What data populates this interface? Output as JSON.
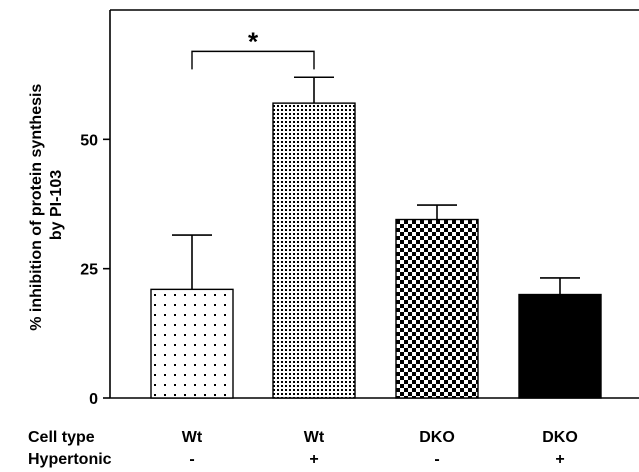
{
  "chart_data": {
    "type": "bar",
    "ylabel_lines": [
      "% inhibition of protein synthesis",
      "by PI-103"
    ],
    "ylim": [
      0,
      75
    ],
    "yticks": [
      0,
      25,
      50
    ],
    "grid": false,
    "row_labels": [
      "Cell type",
      "Hypertonic"
    ],
    "bars": [
      {
        "cell_type": "Wt",
        "hypertonic": "-",
        "value": 21,
        "error": 10.5,
        "pattern": "sparse-dots"
      },
      {
        "cell_type": "Wt",
        "hypertonic": "+",
        "value": 57,
        "error": 5,
        "pattern": "dense-dots"
      },
      {
        "cell_type": "DKO",
        "hypertonic": "-",
        "value": 34.5,
        "error": 2.8,
        "pattern": "checkerboard"
      },
      {
        "cell_type": "DKO",
        "hypertonic": "+",
        "value": 20,
        "error": 3.2,
        "pattern": "solid-black"
      }
    ],
    "significance": {
      "from_bar": 0,
      "to_bar": 1,
      "label": "*",
      "level": 67
    }
  }
}
